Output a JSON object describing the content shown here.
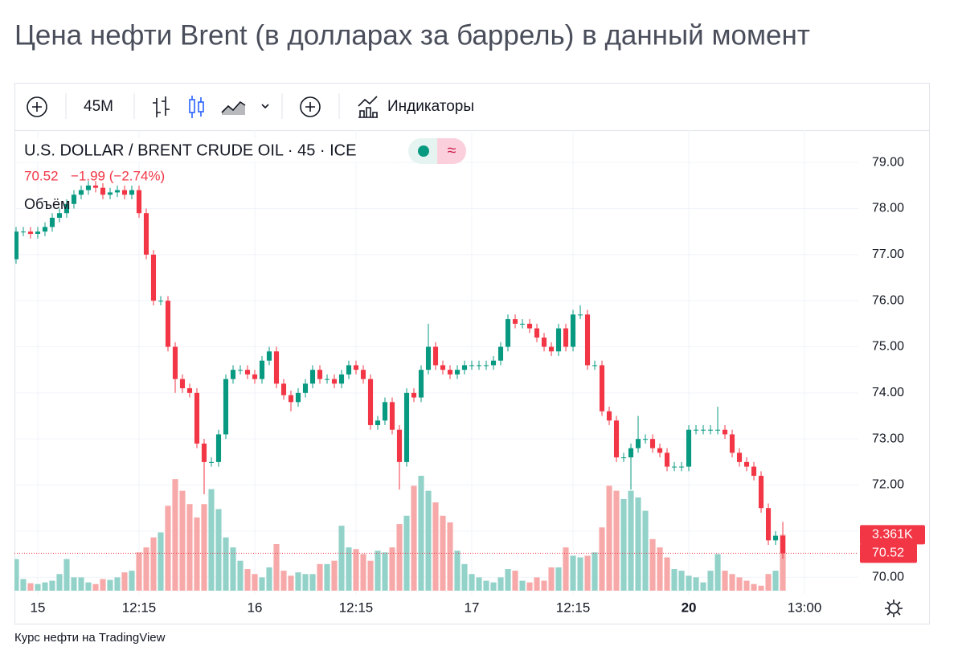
{
  "title": "Цена нефти Brent (в долларах за баррель) в данный момент",
  "toolbar": {
    "interval": "45M",
    "indicators": "Индикаторы"
  },
  "chart_data": {
    "type": "candlestick",
    "symbol": "U.S. DOLLAR / BRENT CRUDE OIL · 45 · ICE",
    "last_close": 70.52,
    "change": "−1.99 (−2.74%)",
    "volume_title": "Объём",
    "open": [
      76.9,
      77.5,
      77.5,
      77.45,
      77.5,
      77.6,
      77.8,
      77.9,
      78.1,
      78.3,
      78.4,
      78.5,
      78.45,
      78.3,
      78.35,
      78.4,
      78.3,
      78.4,
      77.9,
      77.0,
      76.0,
      76.0,
      75.0,
      74.3,
      74.1,
      74.0,
      72.9,
      72.5,
      72.5,
      73.1,
      74.3,
      74.5,
      74.5,
      74.4,
      74.3,
      74.7,
      74.9,
      74.2,
      73.95,
      73.8,
      74.0,
      74.2,
      74.5,
      74.3,
      74.3,
      74.2,
      74.4,
      74.6,
      74.5,
      74.3,
      73.3,
      73.4,
      73.8,
      73.2,
      72.5,
      74.0,
      73.9,
      74.5,
      75.0,
      74.6,
      74.5,
      74.4,
      74.5,
      74.6,
      74.6,
      74.6,
      74.6,
      74.7,
      75.0,
      75.6,
      75.5,
      75.5,
      75.4,
      75.2,
      75.0,
      74.9,
      75.4,
      75.0,
      75.7,
      75.7,
      74.6,
      74.6,
      73.6,
      73.4,
      72.6,
      72.6,
      72.8,
      73.0,
      73.0,
      72.8,
      72.7,
      72.4,
      72.4,
      72.4,
      73.2,
      73.2,
      73.2,
      73.2,
      73.2,
      73.1,
      72.7,
      72.5,
      72.4,
      72.2,
      71.5,
      70.8,
      70.9
    ],
    "high": [
      77.6,
      77.6,
      77.6,
      77.6,
      77.7,
      77.9,
      78.0,
      78.2,
      78.4,
      78.5,
      78.6,
      78.6,
      78.55,
      78.45,
      78.5,
      78.5,
      78.5,
      78.5,
      78.0,
      77.1,
      76.1,
      76.1,
      75.1,
      74.4,
      74.2,
      74.1,
      73.0,
      72.6,
      73.2,
      74.4,
      74.6,
      74.6,
      74.6,
      74.5,
      74.8,
      75.0,
      75.0,
      74.3,
      74.05,
      74.1,
      74.3,
      74.6,
      74.6,
      74.4,
      74.4,
      74.5,
      74.7,
      74.7,
      74.6,
      74.4,
      73.5,
      73.9,
      73.9,
      73.3,
      74.1,
      74.1,
      74.6,
      75.5,
      75.1,
      74.7,
      74.6,
      74.6,
      74.7,
      74.7,
      74.7,
      74.7,
      74.8,
      75.1,
      75.7,
      75.7,
      75.6,
      75.6,
      75.5,
      75.3,
      75.1,
      75.5,
      75.5,
      75.8,
      75.9,
      75.8,
      74.7,
      74.7,
      73.7,
      73.5,
      72.7,
      72.9,
      73.5,
      73.1,
      73.1,
      72.9,
      72.8,
      72.5,
      72.5,
      73.3,
      73.3,
      73.3,
      73.3,
      73.7,
      73.3,
      73.2,
      72.8,
      72.6,
      72.5,
      72.3,
      71.6,
      71.0,
      71.2
    ],
    "low": [
      76.8,
      77.4,
      77.35,
      77.35,
      77.4,
      77.5,
      77.7,
      77.8,
      78.0,
      78.2,
      78.3,
      78.35,
      78.2,
      78.2,
      78.25,
      78.2,
      78.2,
      77.8,
      76.9,
      75.9,
      75.9,
      74.9,
      74.0,
      74.0,
      73.9,
      72.8,
      71.8,
      72.4,
      72.4,
      73.0,
      74.2,
      74.4,
      74.3,
      74.2,
      74.2,
      74.6,
      74.1,
      73.85,
      73.6,
      73.7,
      73.9,
      74.1,
      74.2,
      74.2,
      74.1,
      74.1,
      74.3,
      74.4,
      74.2,
      73.2,
      73.2,
      73.3,
      73.1,
      71.9,
      72.4,
      73.8,
      73.8,
      74.4,
      74.5,
      74.4,
      74.3,
      74.3,
      74.4,
      74.5,
      74.5,
      74.5,
      74.5,
      74.6,
      74.9,
      75.4,
      75.4,
      75.3,
      75.1,
      74.9,
      74.8,
      74.8,
      74.9,
      74.9,
      75.6,
      74.5,
      74.5,
      73.5,
      73.3,
      72.5,
      72.5,
      71.9,
      72.7,
      72.9,
      72.7,
      72.6,
      72.3,
      72.3,
      72.3,
      72.3,
      73.1,
      73.1,
      73.1,
      73.1,
      73.0,
      72.6,
      72.4,
      72.3,
      72.1,
      71.4,
      70.7,
      70.7,
      70.4
    ],
    "close": [
      77.5,
      77.5,
      77.45,
      77.5,
      77.6,
      77.8,
      77.9,
      78.1,
      78.3,
      78.4,
      78.5,
      78.45,
      78.3,
      78.35,
      78.4,
      78.3,
      78.4,
      77.9,
      77.0,
      76.0,
      76.0,
      75.0,
      74.3,
      74.1,
      74.0,
      72.9,
      72.5,
      72.5,
      73.1,
      74.3,
      74.5,
      74.5,
      74.4,
      74.3,
      74.7,
      74.9,
      74.2,
      73.95,
      73.8,
      74.0,
      74.2,
      74.5,
      74.3,
      74.3,
      74.2,
      74.4,
      74.6,
      74.5,
      74.3,
      73.3,
      73.4,
      73.8,
      73.2,
      72.5,
      74.0,
      73.9,
      74.5,
      75.0,
      74.6,
      74.5,
      74.4,
      74.5,
      74.6,
      74.6,
      74.6,
      74.6,
      74.7,
      75.0,
      75.6,
      75.5,
      75.5,
      75.4,
      75.2,
      75.0,
      74.9,
      75.4,
      75.0,
      75.7,
      75.7,
      74.6,
      74.6,
      73.6,
      73.4,
      72.6,
      72.6,
      72.8,
      73.0,
      73.0,
      72.8,
      72.7,
      72.4,
      72.4,
      72.4,
      73.2,
      73.2,
      73.2,
      73.2,
      73.2,
      73.1,
      72.7,
      72.5,
      72.4,
      72.2,
      71.5,
      70.8,
      70.9,
      70.52
    ],
    "volume": [
      1900,
      700,
      450,
      400,
      500,
      600,
      1000,
      1900,
      800,
      800,
      500,
      400,
      700,
      650,
      800,
      1100,
      1200,
      2300,
      2600,
      3200,
      3500,
      5100,
      6700,
      6000,
      5200,
      4400,
      5200,
      6100,
      4900,
      3200,
      2600,
      1800,
      1300,
      1000,
      800,
      1400,
      2800,
      1200,
      900,
      1100,
      1000,
      1000,
      1600,
      1600,
      1800,
      3900,
      2600,
      2500,
      2200,
      1800,
      2400,
      2300,
      2600,
      4000,
      4500,
      6300,
      6900,
      6000,
      5300,
      4500,
      4100,
      2400,
      1600,
      1000,
      800,
      600,
      500,
      800,
      1300,
      1200,
      600,
      500,
      800,
      600,
      1400,
      1400,
      2600,
      2100,
      2000,
      2100,
      2300,
      3800,
      6300,
      6000,
      5500,
      6000,
      5600,
      4800,
      3100,
      2600,
      2000,
      1300,
      1200,
      900,
      800,
      500,
      1200,
      2200,
      1200,
      1000,
      800,
      600,
      400,
      300,
      1000,
      1200,
      3361
    ],
    "volume_label": {
      "value": 3361,
      "label": "3.361K"
    },
    "up_color": "#089981",
    "down_color": "#f23645",
    "up_volume_color": "#92d2c9",
    "down_volume_color": "#f7a9a9",
    "ylim": [
      69.62,
      79.7
    ],
    "yticks": [
      {
        "value": 70,
        "label": "70.00"
      },
      {
        "value": 71,
        "label": "71.00"
      },
      {
        "value": 72,
        "label": "72.00"
      },
      {
        "value": 73,
        "label": "73.00"
      },
      {
        "value": 74,
        "label": "74.00"
      },
      {
        "value": 75,
        "label": "75.00"
      },
      {
        "value": 76,
        "label": "76.00"
      },
      {
        "value": 77,
        "label": "77.00"
      },
      {
        "value": 78,
        "label": "78.00"
      },
      {
        "value": 79,
        "label": "79.00"
      }
    ],
    "xlim": [
      -0.22,
      116.44
    ],
    "xticks": [
      {
        "value": 3,
        "label": "15"
      },
      {
        "value": 17,
        "label": "12:15"
      },
      {
        "value": 33,
        "label": "16"
      },
      {
        "value": 47,
        "label": "12:15"
      },
      {
        "value": 63,
        "label": "17"
      },
      {
        "value": 77,
        "label": "12:15"
      },
      {
        "value": 93,
        "label": "20",
        "bold": true
      },
      {
        "value": 109,
        "label": "13:00"
      }
    ],
    "grid": true
  },
  "footer": "Курс нефти на TradingView"
}
